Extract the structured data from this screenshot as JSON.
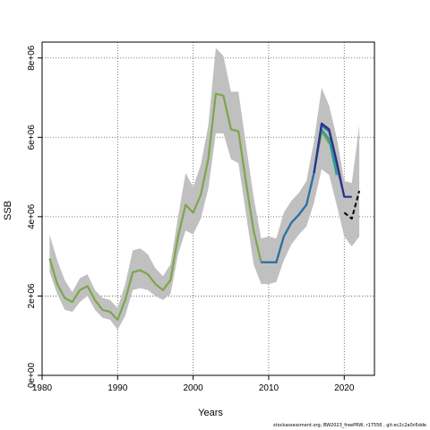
{
  "chart_data": {
    "type": "line",
    "xlabel": "Years",
    "ylabel": "SSB",
    "xlim": [
      1980,
      2024
    ],
    "ylim": [
      0,
      8400000
    ],
    "x_ticks": [
      1980,
      1990,
      2000,
      2010,
      2020
    ],
    "y_ticks": [
      0,
      2000000,
      4000000,
      6000000,
      8000000
    ],
    "y_tick_labels": [
      "0e+00",
      "2e+06",
      "4e+06",
      "6e+06",
      "8e+06"
    ],
    "grid": true,
    "band": {
      "x": [
        1981,
        1982,
        1983,
        1984,
        1985,
        1986,
        1987,
        1988,
        1989,
        1990,
        1991,
        1992,
        1993,
        1994,
        1995,
        1996,
        1997,
        1998,
        1999,
        2000,
        2001,
        2002,
        2003,
        2004,
        2005,
        2006,
        2007,
        2008,
        2009,
        2010,
        2011,
        2012,
        2013,
        2014,
        2015,
        2016,
        2017,
        2018,
        2019,
        2020,
        2021,
        2022
      ],
      "upper": [
        3550000,
        2900000,
        2400000,
        2100000,
        2450000,
        2550000,
        2150000,
        1950000,
        1900000,
        1700000,
        2300000,
        3150000,
        3200000,
        3050000,
        2700000,
        2500000,
        2800000,
        4000000,
        5100000,
        4750000,
        5300000,
        6300000,
        8250000,
        8050000,
        7150000,
        7150000,
        5800000,
        4500000,
        3450000,
        3500000,
        3450000,
        4100000,
        4400000,
        4600000,
        4900000,
        5900000,
        7250000,
        6800000,
        6000000,
        4900000,
        4850000,
        6300000
      ],
      "lower": [
        2600000,
        2050000,
        1650000,
        1600000,
        1850000,
        2000000,
        1650000,
        1450000,
        1400000,
        1150000,
        1500000,
        2150000,
        2200000,
        2150000,
        2000000,
        1900000,
        2050000,
        3050000,
        3650000,
        3550000,
        3950000,
        4700000,
        6100000,
        6100000,
        5450000,
        5350000,
        4050000,
        2800000,
        2300000,
        2300000,
        2350000,
        2900000,
        3300000,
        3550000,
        3750000,
        4350000,
        5200000,
        5050000,
        4300000,
        3500000,
        3250000,
        3500000
      ]
    },
    "series": [
      {
        "color": "#7ca64a",
        "x": [
          1981,
          1982,
          1983,
          1984,
          1985,
          1986,
          1987,
          1988,
          1989,
          1990,
          1991,
          1992,
          1993,
          1994,
          1995,
          1996,
          1997,
          1998,
          1999,
          2000,
          2001,
          2002,
          2003,
          2004,
          2005,
          2006,
          2007,
          2008,
          2009,
          2010,
          2011,
          2012,
          2013,
          2014,
          2015,
          2016,
          2017,
          2018
        ],
        "values": [
          2950000,
          2300000,
          1950000,
          1850000,
          2150000,
          2250000,
          1900000,
          1650000,
          1600000,
          1400000,
          1900000,
          2600000,
          2650000,
          2550000,
          2300000,
          2150000,
          2400000,
          3500000,
          4300000,
          4100000,
          4550000,
          5450000,
          7100000,
          7050000,
          6200000,
          6150000,
          4850000,
          3650000,
          2850000,
          2850000,
          2850000,
          3500000,
          3850000,
          4050000,
          4300000,
          5100000,
          6150000,
          5850000
        ]
      },
      {
        "color": "#2ca089",
        "x": [
          2009,
          2010,
          2011,
          2012,
          2013,
          2014,
          2015,
          2016,
          2017,
          2018,
          2019
        ],
        "values": [
          2850000,
          2850000,
          2850000,
          3500000,
          3850000,
          4050000,
          4300000,
          5100000,
          6200000,
          5950000,
          5050000
        ]
      },
      {
        "color": "#2f6fa8",
        "x": [
          2009,
          2010,
          2011,
          2012,
          2013,
          2014,
          2015,
          2016,
          2017,
          2018,
          2019,
          2020
        ],
        "values": [
          2850000,
          2850000,
          2850000,
          3500000,
          3850000,
          4050000,
          4300000,
          5100000,
          6300000,
          6150000,
          5300000,
          4500000
        ]
      },
      {
        "color": "#2e2f8a",
        "x": [
          2016,
          2017,
          2018,
          2019,
          2020,
          2021
        ],
        "values": [
          5100000,
          6350000,
          6200000,
          5400000,
          4500000,
          4500000
        ]
      },
      {
        "color": "#000000",
        "dashed": true,
        "x": [
          2020,
          2021,
          2022
        ],
        "values": [
          4100000,
          3950000,
          4650000
        ]
      }
    ]
  },
  "footer": "stockassessment.org, BW2023_freePRW, r17556 , git:ec2c2a0c6dde"
}
